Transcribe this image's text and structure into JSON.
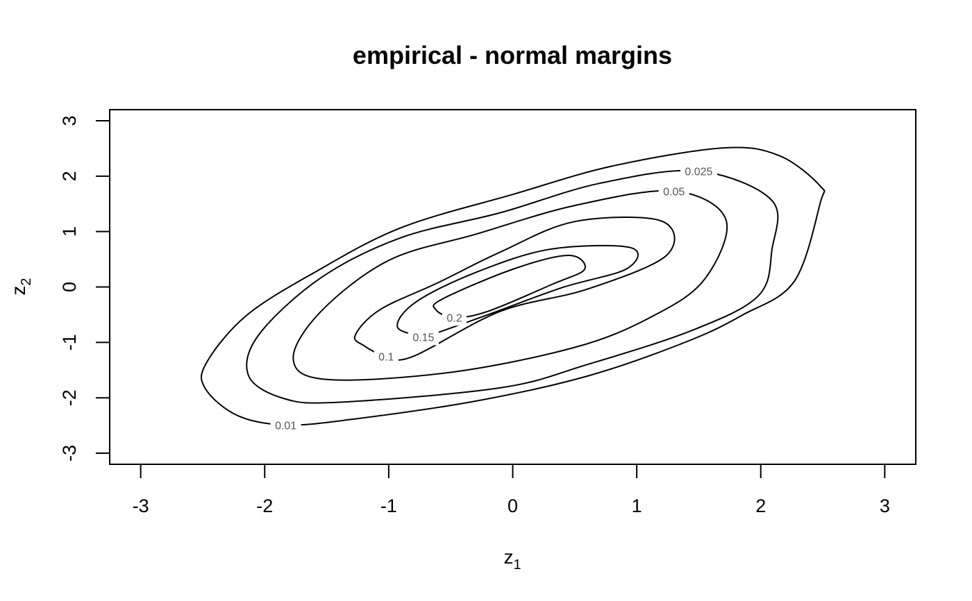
{
  "chart_data": {
    "type": "contour",
    "title": "empirical - normal margins",
    "xlabel": {
      "base": "z",
      "sub": "1"
    },
    "ylabel": {
      "base": "z",
      "sub": "2"
    },
    "xlim": [
      -3.25,
      3.25
    ],
    "ylim": [
      -3.2,
      3.2
    ],
    "xticks": [
      -3,
      -2,
      -1,
      0,
      1,
      2,
      3
    ],
    "yticks": [
      -3,
      -2,
      -1,
      0,
      1,
      2,
      3
    ],
    "xtick_labels": [
      "-3",
      "-2",
      "-1",
      "0",
      "1",
      "2",
      "3"
    ],
    "ytick_labels": [
      "-3",
      "-2",
      "-1",
      "0",
      "1",
      "2",
      "3"
    ],
    "grid": false,
    "levels": [
      {
        "label": "0.01",
        "label_at": [
          -1.83,
          -2.49
        ],
        "points": [
          [
            -1.83,
            -2.49
          ],
          [
            -1.3,
            -2.39
          ],
          [
            -0.3,
            -2.06
          ],
          [
            0.6,
            -1.61
          ],
          [
            1.4,
            -0.99
          ],
          [
            1.85,
            -0.51
          ],
          [
            2.27,
            0.1
          ],
          [
            2.48,
            1.52
          ],
          [
            2.48,
            1.82
          ],
          [
            2.15,
            2.37
          ],
          [
            1.7,
            2.51
          ],
          [
            0.8,
            2.18
          ],
          [
            0,
            1.67
          ],
          [
            -0.9,
            1.07
          ],
          [
            -1.6,
            0.26
          ],
          [
            -2.15,
            -0.52
          ],
          [
            -2.47,
            -1.37
          ],
          [
            -2.48,
            -1.83
          ],
          [
            -2.22,
            -2.32
          ],
          [
            -1.83,
            -2.49
          ]
        ]
      },
      {
        "label": "0.025",
        "label_at": [
          1.5,
          2.09
        ],
        "points": [
          [
            1.5,
            2.09
          ],
          [
            0.7,
            1.87
          ],
          [
            -0.1,
            1.34
          ],
          [
            -0.9,
            0.89
          ],
          [
            -1.55,
            0.16
          ],
          [
            -2.05,
            -0.87
          ],
          [
            -2.13,
            -1.6
          ],
          [
            -1.85,
            -2.01
          ],
          [
            -1.4,
            -2.08
          ],
          [
            -0.1,
            -1.82
          ],
          [
            0.6,
            -1.4
          ],
          [
            1.45,
            -0.78
          ],
          [
            1.98,
            -0.16
          ],
          [
            2.09,
            0.67
          ],
          [
            2.09,
            1.56
          ],
          [
            1.5,
            2.09
          ]
        ]
      },
      {
        "label": "0.05",
        "label_at": [
          1.3,
          1.73
        ],
        "points": [
          [
            1.3,
            1.73
          ],
          [
            0.5,
            1.47
          ],
          [
            -0.3,
            0.95
          ],
          [
            -1.0,
            0.48
          ],
          [
            -1.55,
            -0.45
          ],
          [
            -1.77,
            -1.3
          ],
          [
            -1.5,
            -1.67
          ],
          [
            -0.5,
            -1.54
          ],
          [
            0.5,
            -1.09
          ],
          [
            1.1,
            -0.56
          ],
          [
            1.54,
            0.12
          ],
          [
            1.72,
            1.21
          ],
          [
            1.3,
            1.73
          ]
        ]
      },
      {
        "label": "0.1",
        "label_at": [
          -1.02,
          -1.25
        ],
        "points": [
          [
            -1.02,
            -1.25
          ],
          [
            -1.2,
            -1.06
          ],
          [
            -1.27,
            -0.87
          ],
          [
            -1.07,
            -0.41
          ],
          [
            -0.6,
            0.08
          ],
          [
            -0.1,
            0.63
          ],
          [
            0.5,
            1.18
          ],
          [
            1.2,
            1.19
          ],
          [
            1.24,
            0.57
          ],
          [
            0.6,
            -0.04
          ],
          [
            -0.1,
            -0.44
          ],
          [
            -0.8,
            -1.25
          ],
          [
            -1.02,
            -1.25
          ]
        ]
      },
      {
        "label": "0.15",
        "label_at": [
          -0.72,
          -0.9
        ],
        "points": [
          [
            -0.72,
            -0.9
          ],
          [
            -0.93,
            -0.72
          ],
          [
            -0.78,
            -0.27
          ],
          [
            -0.3,
            0.26
          ],
          [
            0.3,
            0.68
          ],
          [
            0.95,
            0.71
          ],
          [
            0.92,
            0.33
          ],
          [
            0.4,
            -0.01
          ],
          [
            -0.2,
            -0.5
          ],
          [
            -0.7,
            -0.9
          ],
          [
            -0.72,
            -0.9
          ]
        ]
      },
      {
        "label": "0.2",
        "label_at": [
          -0.47,
          -0.55
        ],
        "points": [
          [
            -0.47,
            -0.55
          ],
          [
            -0.62,
            -0.41
          ],
          [
            -0.57,
            -0.22
          ],
          [
            0,
            0.32
          ],
          [
            0.45,
            0.57
          ],
          [
            0.58,
            0.32
          ],
          [
            0.32,
            0.05
          ],
          [
            -0.2,
            -0.44
          ],
          [
            -0.47,
            -0.55
          ]
        ]
      }
    ]
  }
}
